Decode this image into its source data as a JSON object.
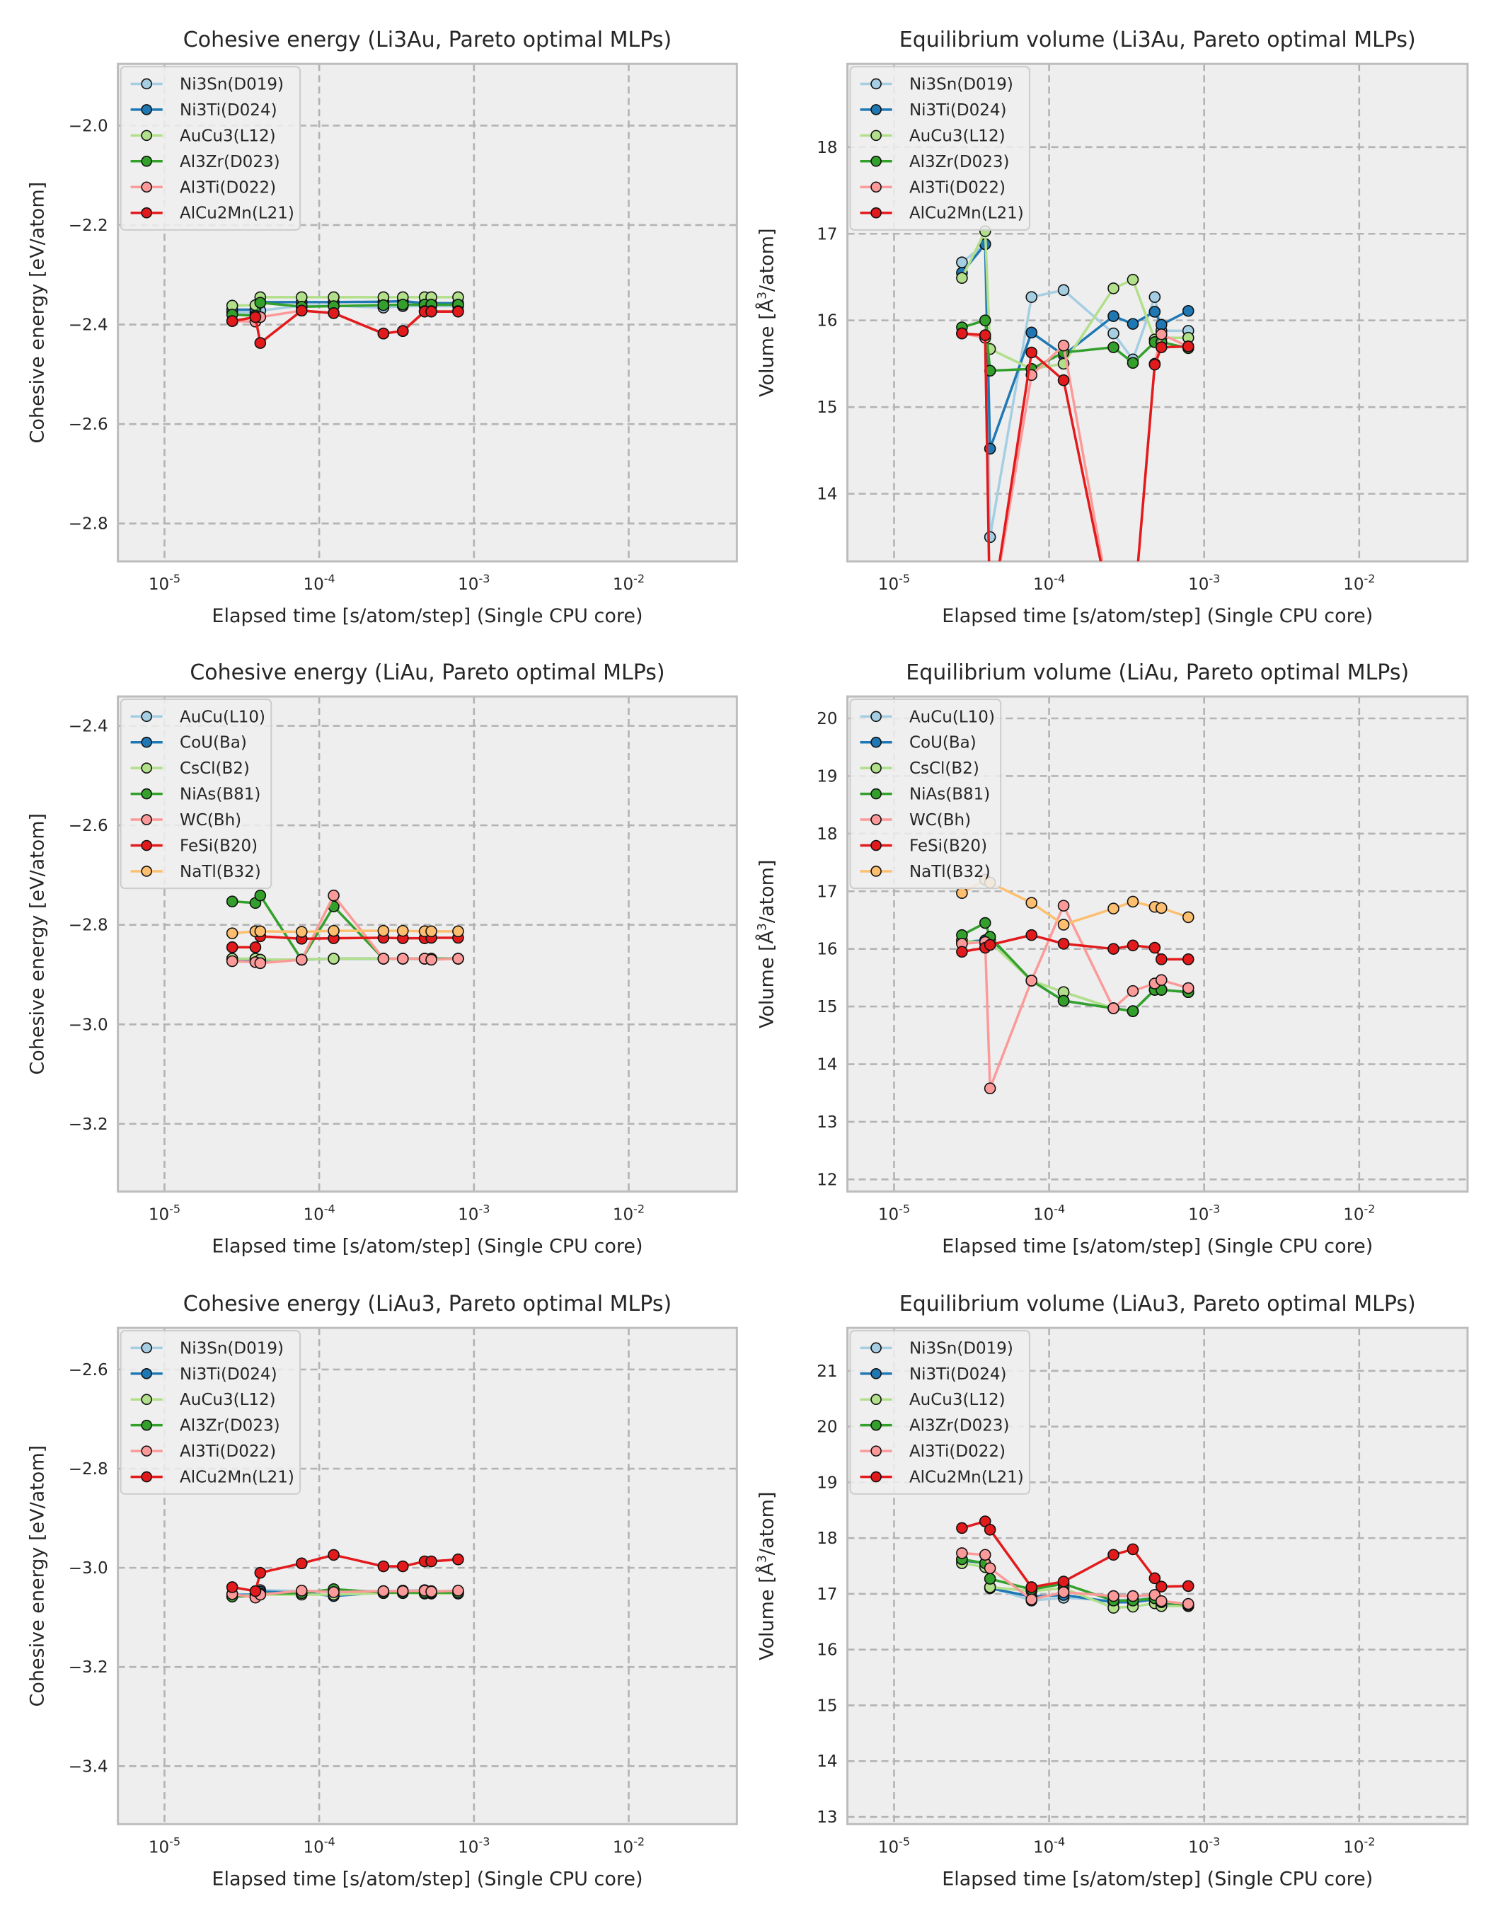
{
  "figure": {
    "xlabel": "Elapsed time [s/atom/step] (Single CPU core)",
    "xtick_base": "10",
    "xtick_exponents": [
      "-5",
      "-4",
      "-3",
      "-2"
    ]
  },
  "chart_data": [
    {
      "type": "line",
      "title": "Cohesive energy (Li3Au, Pareto optimal MLPs)",
      "xlabel": "Elapsed time [s/atom/step] (Single CPU core)",
      "ylabel": "Cohesive energy [eV/atom]",
      "xscale": "log",
      "xlim": [
        5e-06,
        0.05
      ],
      "ylim": [
        -2.876,
        -1.876
      ],
      "yticks": [
        -2.0,
        -2.2,
        -2.4,
        -2.6,
        -2.8
      ],
      "ytick_labels": [
        "−2.0",
        "−2.2",
        "−2.4",
        "−2.6",
        "−2.8"
      ],
      "grid": true,
      "legend_position": "upper-left",
      "x": [
        2.74e-05,
        3.87e-05,
        4.16e-05,
        7.7e-05,
        0.000124,
        0.00026,
        0.000347,
        0.00048,
        0.00053,
        0.00079
      ],
      "series": [
        {
          "name": "Ni3Sn(D019)",
          "color": "#a6cee3",
          "values": [
            -2.375,
            -2.376,
            -2.372,
            -2.362,
            -2.362,
            -2.366,
            -2.363,
            -2.363,
            -2.363,
            -2.363
          ]
        },
        {
          "name": "Ni3Ti(D024)",
          "color": "#1f78b4",
          "values": [
            -2.37,
            -2.37,
            -2.355,
            -2.355,
            -2.355,
            -2.354,
            -2.353,
            -2.357,
            -2.357,
            -2.357
          ]
        },
        {
          "name": "AuCu3(L12)",
          "color": "#b2df8a",
          "values": [
            -2.362,
            -2.361,
            -2.345,
            -2.345,
            -2.345,
            -2.345,
            -2.345,
            -2.345,
            -2.345,
            -2.345
          ]
        },
        {
          "name": "Al3Zr(D023)",
          "color": "#33a02c",
          "values": [
            -2.38,
            -2.382,
            -2.356,
            -2.364,
            -2.363,
            -2.361,
            -2.36,
            -2.36,
            -2.36,
            -2.36
          ]
        },
        {
          "name": "Al3Ti(D022)",
          "color": "#fb9a99",
          "values": [
            -2.393,
            -2.394,
            -2.385,
            -2.372,
            -2.377,
            -2.418,
            -2.413,
            -2.373,
            -2.373,
            -2.373
          ]
        },
        {
          "name": "AlCu2Mn(L21)",
          "color": "#e31a1c",
          "values": [
            -2.393,
            -2.385,
            -2.437,
            -2.372,
            -2.377,
            -2.418,
            -2.413,
            -2.374,
            -2.374,
            -2.374
          ]
        }
      ]
    },
    {
      "type": "line",
      "title": "Equilibrium volume (Li3Au, Pareto optimal MLPs)",
      "xlabel": "Elapsed time [s/atom/step] (Single CPU core)",
      "ylabel_prefix": "Volume [",
      "ylabel_unit": "Å",
      "ylabel_sup": "3",
      "ylabel_suffix": "/atom]",
      "xscale": "log",
      "xlim": [
        5e-06,
        0.05
      ],
      "ylim": [
        13.22,
        18.96
      ],
      "yticks": [
        14,
        15,
        16,
        17,
        18
      ],
      "ytick_labels": [
        "14",
        "15",
        "16",
        "17",
        "18"
      ],
      "grid": true,
      "legend_position": "upper-left",
      "x": [
        2.74e-05,
        3.87e-05,
        4.16e-05,
        7.7e-05,
        0.000124,
        0.00026,
        0.000347,
        0.00048,
        0.00053,
        0.00079
      ],
      "series": [
        {
          "name": "Ni3Sn(D019)",
          "color": "#a6cee3",
          "values": [
            16.67,
            16.88,
            13.5,
            16.27,
            16.35,
            15.85,
            15.55,
            16.27,
            15.88,
            15.88
          ]
        },
        {
          "name": "Ni3Ti(D024)",
          "color": "#1f78b4",
          "values": [
            16.55,
            16.88,
            14.52,
            15.86,
            15.6,
            16.05,
            15.96,
            16.1,
            15.95,
            16.11
          ]
        },
        {
          "name": "AuCu3(L12)",
          "color": "#b2df8a",
          "values": [
            16.49,
            17.03,
            15.67,
            15.44,
            15.5,
            16.37,
            16.47,
            15.78,
            15.8,
            15.8
          ]
        },
        {
          "name": "Al3Zr(D023)",
          "color": "#33a02c",
          "values": [
            15.92,
            16.0,
            15.42,
            15.44,
            15.63,
            15.69,
            15.51,
            15.75,
            15.75,
            15.68
          ]
        },
        {
          "name": "Al3Ti(D022)",
          "color": "#fb9a99",
          "values": [
            15.85,
            15.8,
            12.5,
            15.37,
            15.71,
            12.5,
            12.5,
            15.5,
            15.84,
            15.7
          ]
        },
        {
          "name": "AlCu2Mn(L21)",
          "color": "#e31a1c",
          "values": [
            15.85,
            15.83,
            12.5,
            15.63,
            15.31,
            12.5,
            12.5,
            15.49,
            15.69,
            15.7
          ]
        }
      ]
    },
    {
      "type": "line",
      "title": "Cohesive energy (LiAu, Pareto optimal MLPs)",
      "xlabel": "Elapsed time [s/atom/step] (Single CPU core)",
      "ylabel": "Cohesive energy [eV/atom]",
      "xscale": "log",
      "xlim": [
        5e-06,
        0.05
      ],
      "ylim": [
        -3.336,
        -2.341
      ],
      "yticks": [
        -2.4,
        -2.6,
        -2.8,
        -3.0,
        -3.2
      ],
      "ytick_labels": [
        "−2.4",
        "−2.6",
        "−2.8",
        "−3.0",
        "−3.2"
      ],
      "grid": true,
      "legend_position": "upper-left",
      "x": [
        2.74e-05,
        3.87e-05,
        4.16e-05,
        7.7e-05,
        0.000124,
        0.00026,
        0.000347,
        0.00048,
        0.00053,
        0.00079
      ],
      "series": [
        {
          "name": "AuCu(L10)",
          "color": "#a6cee3",
          "values": [
            -2.868,
            -2.868,
            -2.87,
            -2.87,
            -2.868,
            -2.868,
            -2.868,
            -2.868,
            -2.868,
            -2.868
          ]
        },
        {
          "name": "CoU(Ba)",
          "color": "#1f78b4",
          "values": [
            -2.87,
            -2.87,
            -2.872,
            -2.87,
            -2.868,
            -2.868,
            -2.868,
            -2.868,
            -2.868,
            -2.868
          ]
        },
        {
          "name": "CsCl(B2)",
          "color": "#b2df8a",
          "values": [
            -2.868,
            -2.868,
            -2.87,
            -2.87,
            -2.868,
            -2.868,
            -2.868,
            -2.868,
            -2.868,
            -2.868
          ]
        },
        {
          "name": "NiAs(B81)",
          "color": "#33a02c",
          "values": [
            -2.753,
            -2.756,
            -2.741,
            -2.87,
            -2.763,
            -2.868,
            -2.868,
            -2.868,
            -2.868,
            -2.868
          ]
        },
        {
          "name": "WC(Bh)",
          "color": "#fb9a99",
          "values": [
            -2.873,
            -2.875,
            -2.877,
            -2.87,
            -2.741,
            -2.868,
            -2.868,
            -2.868,
            -2.87,
            -2.868
          ]
        },
        {
          "name": "FeSi(B20)",
          "color": "#e31a1c",
          "values": [
            -2.845,
            -2.845,
            -2.823,
            -2.828,
            -2.827,
            -2.826,
            -2.827,
            -2.827,
            -2.826,
            -2.826
          ]
        },
        {
          "name": "NaTl(B32)",
          "color": "#fdbf6f",
          "values": [
            -2.817,
            -2.813,
            -2.813,
            -2.814,
            -2.812,
            -2.812,
            -2.812,
            -2.813,
            -2.813,
            -2.813
          ]
        }
      ]
    },
    {
      "type": "line",
      "title": "Equilibrium volume (LiAu, Pareto optimal MLPs)",
      "xlabel": "Elapsed time [s/atom/step] (Single CPU core)",
      "ylabel_prefix": "Volume [",
      "ylabel_unit": "Å",
      "ylabel_sup": "3",
      "ylabel_suffix": "/atom]",
      "xscale": "log",
      "xlim": [
        5e-06,
        0.05
      ],
      "ylim": [
        11.79,
        20.38
      ],
      "yticks": [
        12,
        13,
        14,
        15,
        16,
        17,
        18,
        19,
        20
      ],
      "ytick_labels": [
        "12",
        "13",
        "14",
        "15",
        "16",
        "17",
        "18",
        "19",
        "20"
      ],
      "grid": true,
      "legend_position": "upper-left",
      "x": [
        2.74e-05,
        3.87e-05,
        4.16e-05,
        7.7e-05,
        0.000124,
        0.00026,
        0.000347,
        0.00048,
        0.00053,
        0.00079
      ],
      "series": [
        {
          "name": "AuCu(L10)",
          "color": "#a6cee3",
          "values": [
            16.1,
            16.12,
            16.13,
            15.45,
            15.25,
            14.97,
            14.92,
            15.29,
            15.29,
            15.25
          ]
        },
        {
          "name": "CoU(Ba)",
          "color": "#1f78b4",
          "values": [
            16.12,
            16.15,
            16.15,
            15.45,
            15.1,
            14.97,
            14.92,
            15.29,
            15.29,
            15.25
          ]
        },
        {
          "name": "CsCl(B2)",
          "color": "#b2df8a",
          "values": [
            16.15,
            16.1,
            16.12,
            15.45,
            15.25,
            14.97,
            14.92,
            15.29,
            15.29,
            15.25
          ]
        },
        {
          "name": "NiAs(B81)",
          "color": "#33a02c",
          "values": [
            16.24,
            16.45,
            16.21,
            15.45,
            15.1,
            14.97,
            14.92,
            15.29,
            15.29,
            15.25
          ]
        },
        {
          "name": "WC(Bh)",
          "color": "#fb9a99",
          "values": [
            16.09,
            16.12,
            13.58,
            15.45,
            16.75,
            14.97,
            15.27,
            15.4,
            15.46,
            15.32
          ]
        },
        {
          "name": "FeSi(B20)",
          "color": "#e31a1c",
          "values": [
            15.95,
            16.02,
            16.07,
            16.24,
            16.09,
            16.0,
            16.06,
            16.02,
            15.82,
            15.82
          ]
        },
        {
          "name": "NaTl(B32)",
          "color": "#fdbf6f",
          "values": [
            16.97,
            17.2,
            17.15,
            16.8,
            16.42,
            16.7,
            16.82,
            16.73,
            16.71,
            16.55
          ]
        }
      ]
    },
    {
      "type": "line",
      "title": "Cohesive energy (LiAu3, Pareto optimal MLPs)",
      "xlabel": "Elapsed time [s/atom/step] (Single CPU core)",
      "ylabel": "Cohesive energy [eV/atom]",
      "xscale": "log",
      "xlim": [
        5e-06,
        0.05
      ],
      "ylim": [
        -3.517,
        -2.516
      ],
      "yticks": [
        -2.6,
        -2.8,
        -3.0,
        -3.2,
        -3.4
      ],
      "ytick_labels": [
        "−2.6",
        "−2.8",
        "−3.0",
        "−3.2",
        "−3.4"
      ],
      "grid": true,
      "legend_position": "upper-left",
      "x": [
        2.74e-05,
        3.87e-05,
        4.16e-05,
        7.7e-05,
        0.000124,
        0.00026,
        0.000347,
        0.00048,
        0.00053,
        0.00079
      ],
      "series": [
        {
          "name": "Ni3Sn(D019)",
          "color": "#a6cee3",
          "values": [
            -3.053,
            -3.054,
            -3.045,
            -3.047,
            -3.047,
            -3.047,
            -3.046,
            -3.045,
            -3.047,
            -3.047
          ]
        },
        {
          "name": "Ni3Ti(D024)",
          "color": "#1f78b4",
          "values": [
            -3.055,
            -3.054,
            -3.048,
            -3.05,
            -3.057,
            -3.049,
            -3.048,
            -3.048,
            -3.048,
            -3.049
          ]
        },
        {
          "name": "AuCu3(L12)",
          "color": "#b2df8a",
          "values": [
            -3.057,
            -3.055,
            -3.054,
            -3.054,
            -3.054,
            -3.051,
            -3.051,
            -3.052,
            -3.052,
            -3.052
          ]
        },
        {
          "name": "Al3Zr(D023)",
          "color": "#33a02c",
          "values": [
            -3.058,
            -3.057,
            -3.052,
            -3.051,
            -3.043,
            -3.05,
            -3.05,
            -3.05,
            -3.05,
            -3.05
          ]
        },
        {
          "name": "Al3Ti(D022)",
          "color": "#fb9a99",
          "values": [
            -3.053,
            -3.06,
            -3.054,
            -3.046,
            -3.049,
            -3.047,
            -3.047,
            -3.046,
            -3.048,
            -3.046
          ]
        },
        {
          "name": "AlCu2Mn(L21)",
          "color": "#e31a1c",
          "values": [
            -3.039,
            -3.047,
            -3.01,
            -2.991,
            -2.974,
            -2.997,
            -2.997,
            -2.987,
            -2.987,
            -2.983
          ]
        }
      ]
    },
    {
      "type": "line",
      "title": "Equilibrium volume (LiAu3, Pareto optimal MLPs)",
      "xlabel": "Elapsed time [s/atom/step] (Single CPU core)",
      "ylabel_prefix": "Volume [",
      "ylabel_unit": "Å",
      "ylabel_sup": "3",
      "ylabel_suffix": "/atom]",
      "xscale": "log",
      "xlim": [
        5e-06,
        0.05
      ],
      "ylim": [
        12.87,
        21.77
      ],
      "yticks": [
        13,
        14,
        15,
        16,
        17,
        18,
        19,
        20,
        21
      ],
      "ytick_labels": [
        "13",
        "14",
        "15",
        "16",
        "17",
        "18",
        "19",
        "20",
        "21"
      ],
      "grid": true,
      "legend_position": "upper-left",
      "x": [
        2.74e-05,
        3.87e-05,
        4.16e-05,
        7.7e-05,
        0.000124,
        0.00026,
        0.000347,
        0.00048,
        0.00053,
        0.00079
      ],
      "series": [
        {
          "name": "Ni3Sn(D019)",
          "color": "#a6cee3",
          "values": [
            17.62,
            17.55,
            17.12,
            16.88,
            16.93,
            16.88,
            16.9,
            16.93,
            16.82,
            16.8
          ]
        },
        {
          "name": "Ni3Ti(D024)",
          "color": "#1f78b4",
          "values": [
            17.6,
            17.55,
            17.1,
            16.95,
            16.98,
            16.85,
            16.85,
            16.9,
            16.82,
            16.79
          ]
        },
        {
          "name": "AuCu3(L12)",
          "color": "#b2df8a",
          "values": [
            17.55,
            17.48,
            17.12,
            17.05,
            17.1,
            16.75,
            16.77,
            16.83,
            16.78,
            16.78
          ]
        },
        {
          "name": "Al3Zr(D023)",
          "color": "#33a02c",
          "values": [
            17.62,
            17.55,
            17.27,
            17.08,
            17.18,
            16.88,
            16.88,
            16.92,
            16.85,
            16.8
          ]
        },
        {
          "name": "Al3Ti(D022)",
          "color": "#fb9a99",
          "values": [
            17.73,
            17.7,
            17.46,
            16.9,
            17.03,
            16.96,
            16.96,
            16.98,
            16.87,
            16.82
          ]
        },
        {
          "name": "AlCu2Mn(L21)",
          "color": "#e31a1c",
          "values": [
            18.18,
            18.3,
            18.15,
            17.12,
            17.22,
            17.7,
            17.8,
            17.28,
            17.13,
            17.14
          ]
        }
      ]
    }
  ]
}
